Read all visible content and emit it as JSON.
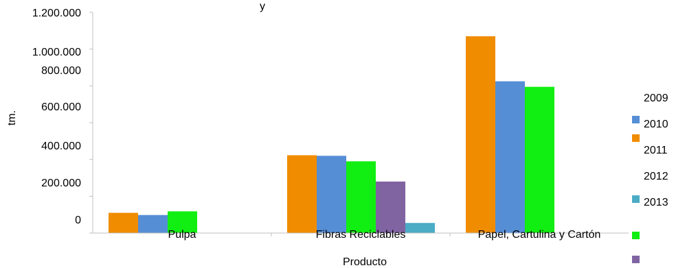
{
  "chart_data": {
    "type": "bar",
    "title": "y",
    "xlabel": "Producto",
    "ylabel": "tm.",
    "categories": [
      "Pulpa",
      "Fibras Reciclables",
      "Papel, Cartulina y Cartón"
    ],
    "y_tick_labels": [
      "0",
      "200.000",
      "400.000",
      "600.000",
      "800.000",
      "1.000.000",
      "1.200.000"
    ],
    "ylim": [
      0,
      1200000
    ],
    "grid": false,
    "legend_position": "right",
    "legend_labels": [
      "2009",
      "2010",
      "2011",
      "2012",
      "2013"
    ],
    "series": [
      {
        "label": "2009",
        "color": "#f08c00",
        "values": [
          110000,
          423000,
          1070000
        ]
      },
      {
        "label": "2010",
        "color": "#558ed5",
        "values": [
          98000,
          420000,
          825000
        ]
      },
      {
        "label": "2011",
        "color": "#11ee11",
        "values": [
          118000,
          390000,
          795000
        ]
      },
      {
        "label": "2012",
        "color": "#8064a2",
        "values": [
          0,
          280000,
          0
        ]
      },
      {
        "label": "2013",
        "color": "#4bacc6",
        "values": [
          0,
          55000,
          0
        ]
      }
    ]
  }
}
